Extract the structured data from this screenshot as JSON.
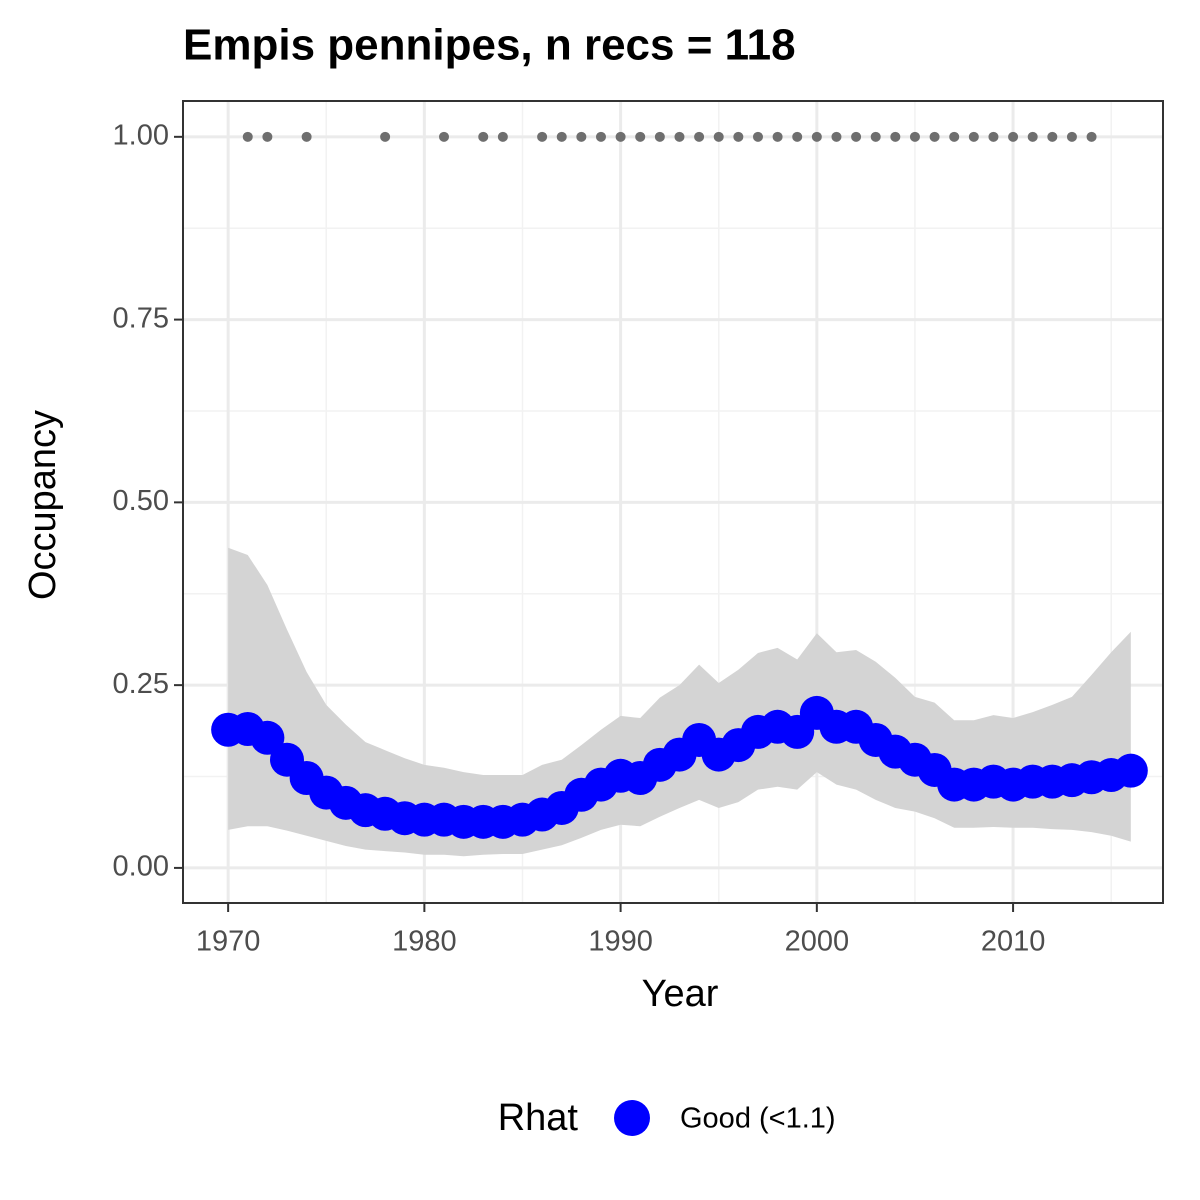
{
  "chart_data": {
    "type": "line",
    "title": "Empis pennipes, n recs = 118",
    "x_label": "Year",
    "y_label": "Occupancy",
    "legend_title": "Rhat",
    "legend_position": "bottom",
    "grid": true,
    "x": [
      1970,
      1971,
      1972,
      1973,
      1974,
      1975,
      1976,
      1977,
      1978,
      1979,
      1980,
      1981,
      1982,
      1983,
      1984,
      1985,
      1986,
      1987,
      1988,
      1989,
      1990,
      1991,
      1992,
      1993,
      1994,
      1995,
      1996,
      1997,
      1998,
      1999,
      2000,
      2001,
      2002,
      2003,
      2004,
      2005,
      2006,
      2007,
      2008,
      2009,
      2010,
      2011,
      2012,
      2013,
      2014,
      2015,
      2016
    ],
    "series": [
      {
        "name": "Good (<1.1)",
        "color": "#0000ff",
        "values": [
          0.189,
          0.19,
          0.178,
          0.148,
          0.123,
          0.103,
          0.089,
          0.079,
          0.074,
          0.068,
          0.066,
          0.066,
          0.063,
          0.063,
          0.063,
          0.066,
          0.073,
          0.082,
          0.1,
          0.114,
          0.126,
          0.123,
          0.141,
          0.155,
          0.175,
          0.155,
          0.168,
          0.186,
          0.193,
          0.186,
          0.212,
          0.193,
          0.193,
          0.175,
          0.159,
          0.148,
          0.134,
          0.114,
          0.114,
          0.118,
          0.114,
          0.118,
          0.118,
          0.12,
          0.124,
          0.127,
          0.133
        ]
      }
    ],
    "band_color": "#d4d4d4",
    "band_upper": [
      0.438,
      0.428,
      0.387,
      0.326,
      0.268,
      0.223,
      0.196,
      0.172,
      0.161,
      0.15,
      0.141,
      0.137,
      0.131,
      0.127,
      0.127,
      0.127,
      0.141,
      0.148,
      0.168,
      0.189,
      0.208,
      0.205,
      0.233,
      0.25,
      0.278,
      0.253,
      0.271,
      0.294,
      0.301,
      0.285,
      0.321,
      0.295,
      0.298,
      0.282,
      0.26,
      0.234,
      0.226,
      0.202,
      0.202,
      0.209,
      0.205,
      0.213,
      0.223,
      0.234,
      0.264,
      0.295,
      0.323
    ],
    "band_lower": [
      0.052,
      0.057,
      0.057,
      0.051,
      0.044,
      0.037,
      0.03,
      0.025,
      0.023,
      0.021,
      0.018,
      0.018,
      0.016,
      0.018,
      0.019,
      0.019,
      0.025,
      0.031,
      0.041,
      0.052,
      0.059,
      0.057,
      0.07,
      0.082,
      0.093,
      0.082,
      0.09,
      0.107,
      0.111,
      0.107,
      0.131,
      0.114,
      0.107,
      0.093,
      0.082,
      0.077,
      0.068,
      0.055,
      0.055,
      0.056,
      0.055,
      0.055,
      0.053,
      0.052,
      0.049,
      0.044,
      0.036
    ],
    "records": {
      "color": "#6e6e6e",
      "x": [
        1971,
        1972,
        1974,
        1978,
        1981,
        1983,
        1984,
        1986,
        1987,
        1988,
        1989,
        1990,
        1991,
        1992,
        1993,
        1994,
        1995,
        1996,
        1997,
        1998,
        1999,
        2000,
        2001,
        2002,
        2003,
        2004,
        2005,
        2006,
        2007,
        2008,
        2009,
        2010,
        2011,
        2012,
        2013,
        2014
      ],
      "values": [
        1,
        1,
        1,
        1,
        1,
        1,
        1,
        1,
        1,
        1,
        1,
        1,
        1,
        1,
        1,
        1,
        1,
        1,
        1,
        1,
        1,
        1,
        1,
        1,
        1,
        1,
        1,
        1,
        1,
        1,
        1,
        1,
        1,
        1,
        1,
        1
      ]
    },
    "xlim": [
      1967.7,
      2017.64
    ],
    "ylim": [
      -0.048,
      1.049
    ],
    "xticks": [
      1970,
      1980,
      1990,
      2000,
      2010
    ],
    "yticks": [
      {
        "value": 0,
        "label": "0.00"
      },
      {
        "value": 0.25,
        "label": "0.25"
      },
      {
        "value": 0.5,
        "label": "0.50"
      },
      {
        "value": 0.75,
        "label": "0.75"
      },
      {
        "value": 1,
        "label": "1.00"
      }
    ]
  }
}
